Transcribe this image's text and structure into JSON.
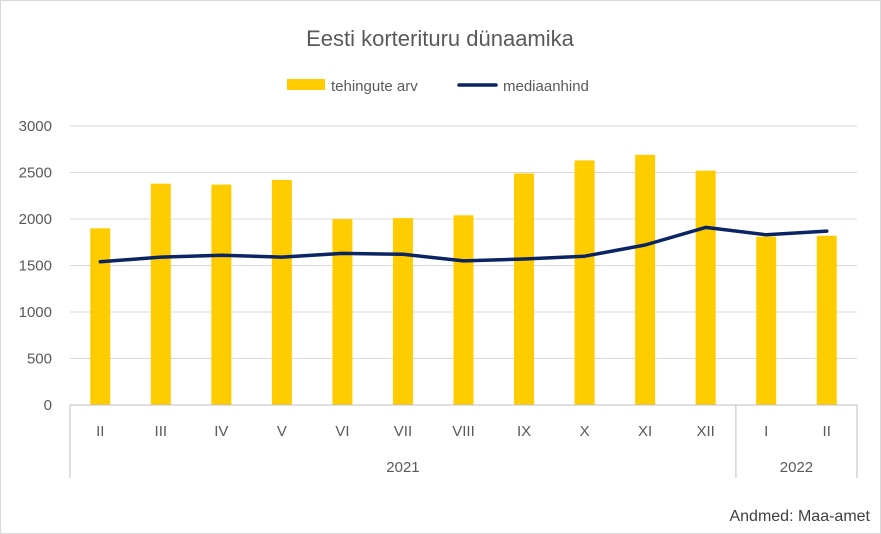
{
  "chart_data": {
    "type": "bar",
    "title": "Eesti korterituru dünaamika",
    "groups": [
      {
        "label": "2021",
        "categories": [
          "II",
          "III",
          "IV",
          "V",
          "VI",
          "VII",
          "VIII",
          "IX",
          "X",
          "XI",
          "XII"
        ]
      },
      {
        "label": "2022",
        "categories": [
          "I",
          "II"
        ]
      }
    ],
    "series": [
      {
        "name": "tehingute arv",
        "type": "bar",
        "color": "#FFCC00",
        "values": [
          1900,
          2380,
          2370,
          2420,
          2000,
          2010,
          2040,
          2490,
          2630,
          2690,
          2520,
          1810,
          1820
        ]
      },
      {
        "name": "mediaanhind",
        "type": "line",
        "color": "#0B2463",
        "values": [
          1540,
          1590,
          1610,
          1590,
          1630,
          1620,
          1550,
          1570,
          1600,
          1720,
          1910,
          1830,
          1870
        ]
      }
    ],
    "yticks": [
      0,
      500,
      1000,
      1500,
      2000,
      2500,
      3000
    ],
    "ylim": [
      0,
      3000
    ],
    "grid": true,
    "legend": "top"
  },
  "source": "Andmed: Maa-amet"
}
